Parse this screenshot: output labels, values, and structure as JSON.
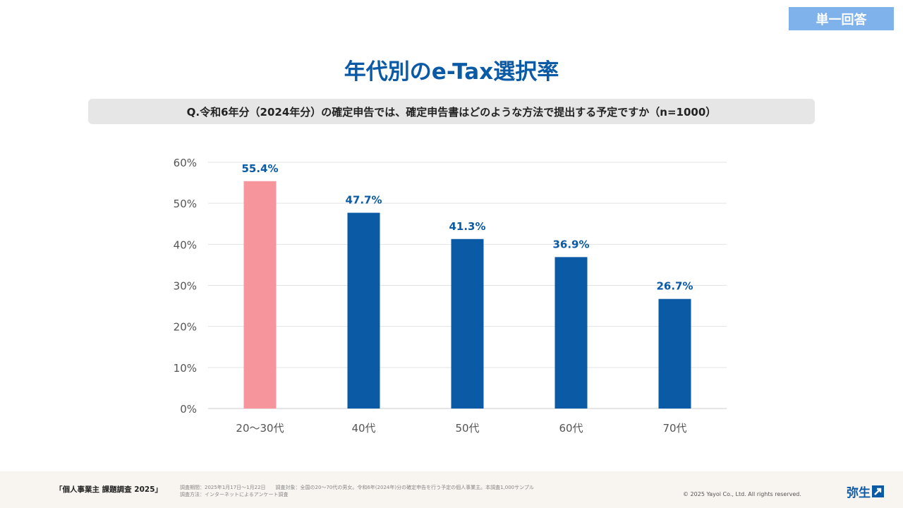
{
  "badge": "単一回答",
  "title": "年代別のe-Tax選択率",
  "question": "Q.令和6年分（2024年分）の確定申告では、確定申告書はどのような方法で提出する予定ですか（n=1000）",
  "chart_data": {
    "type": "bar",
    "title": "年代別のe-Tax選択率",
    "xlabel": "",
    "ylabel": "",
    "categories": [
      "20〜30代",
      "40代",
      "50代",
      "60代",
      "70代"
    ],
    "values": [
      55.4,
      47.7,
      41.3,
      36.9,
      26.7
    ],
    "value_labels": [
      "55.4%",
      "47.7%",
      "41.3%",
      "36.9%",
      "26.7%"
    ],
    "ylim": [
      0,
      60
    ],
    "yticks": [
      0,
      10,
      20,
      30,
      40,
      50,
      60
    ],
    "ytick_labels": [
      "0%",
      "10%",
      "20%",
      "30%",
      "40%",
      "50%",
      "60%"
    ],
    "grid": true,
    "bar_colors": [
      "#f7959c",
      "#0b5aa6",
      "#0b5aa6",
      "#0b5aa6",
      "#0b5aa6"
    ],
    "label_color": "#0b5aa6"
  },
  "footer": {
    "survey_name": "「個人事業主 課題調査 2025」",
    "period": "調査期間：2025年1月17日〜1月22日",
    "target": "調査対象：全国の20〜70代の男女。令和6年(2024年)分の確定申告を行う予定の個人事業主。本調査1,000サンプル",
    "method": "調査方法：インターネットによるアンケート調査",
    "copyright": "© 2025 Yayoi Co., Ltd.  All rights reserved.",
    "logo": "弥生"
  }
}
